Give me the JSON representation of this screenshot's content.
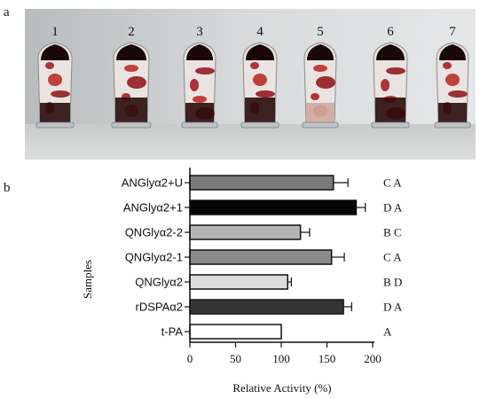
{
  "panels": {
    "a": "a",
    "b": "b"
  },
  "photo": {
    "tube_labels": [
      "1",
      "2",
      "3",
      "4",
      "5",
      "6",
      "7"
    ]
  },
  "chart_data": {
    "type": "bar",
    "orientation": "horizontal",
    "xlabel": "Relative Activity (%)",
    "ylabel": "Samples",
    "xlim": [
      0,
      200
    ],
    "xticks": [
      0,
      50,
      100,
      150,
      200
    ],
    "categories": [
      "ANGlyα2+U",
      "ANGlyα2+1",
      "QNGlyα2-2",
      "QNGlyα2-1",
      "QNGlyα2",
      "rDSPAα2",
      "t-PA"
    ],
    "values": [
      157,
      182,
      121,
      155,
      107,
      168,
      100
    ],
    "errors": [
      16,
      10,
      10,
      14,
      4,
      9,
      0
    ],
    "significance": [
      "C A",
      "D A",
      "B C",
      "C A",
      "B D",
      "D A",
      "A"
    ],
    "bar_colors": [
      "#7a7a7a",
      "#060606",
      "#b4b4b4",
      "#8a8a8a",
      "#dcdcdc",
      "#353535",
      "#ffffff"
    ],
    "grid": false
  }
}
